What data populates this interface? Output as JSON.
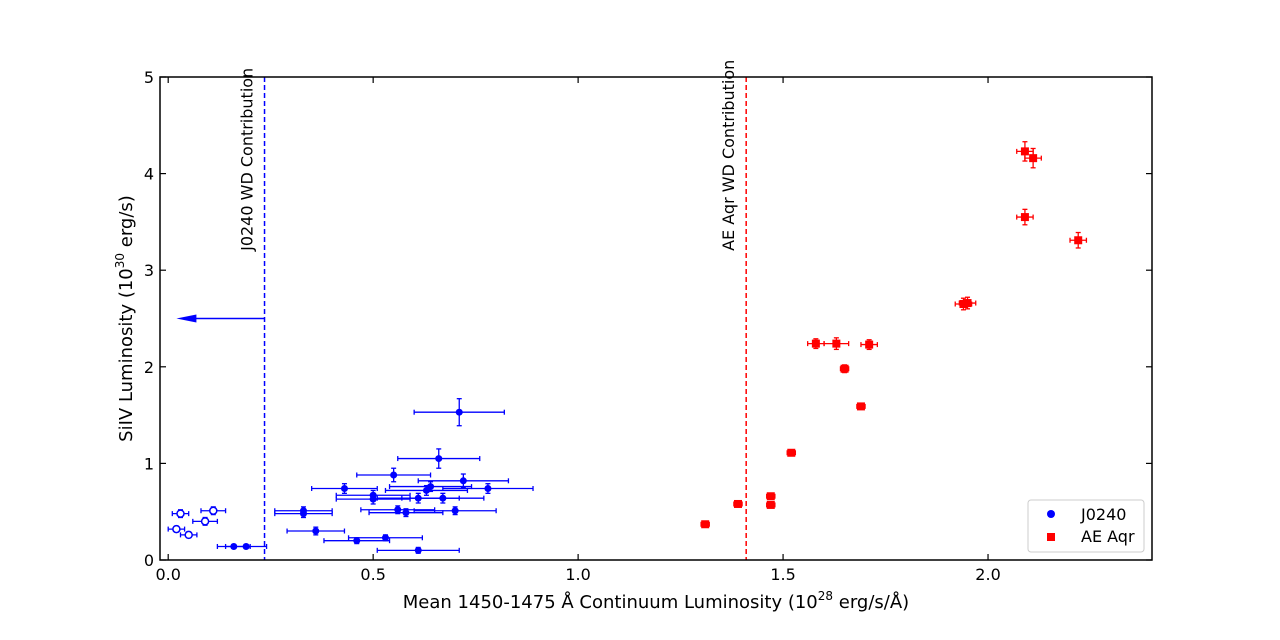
{
  "chart_data": {
    "type": "scatter",
    "title": "",
    "xlabel": "Mean 1450-1475 Å Continuum Luminosity (10",
    "xlabel_exp": "28",
    "xlabel_unit": " erg/s/Å)",
    "ylabel": "SiIV Luminosity (10",
    "ylabel_exp": "30",
    "ylabel_unit": " erg/s)",
    "xlim": [
      -0.02,
      2.4
    ],
    "ylim": [
      0,
      5
    ],
    "xticks": [
      0.0,
      0.5,
      1.0,
      1.5,
      2.0
    ],
    "xtick_labels": [
      "0.0",
      "0.5",
      "1.0",
      "1.5",
      "2.0"
    ],
    "yticks": [
      0,
      1,
      2,
      3,
      4,
      5
    ],
    "ytick_labels": [
      "0",
      "1",
      "2",
      "3",
      "4",
      "5"
    ],
    "vlines": [
      {
        "x": 0.235,
        "color": "#0000ff",
        "label": "J0240 WD Contribution",
        "label_y": 3.2
      },
      {
        "x": 1.41,
        "color": "#ff0000",
        "label": "AE Aqr WD Contribution",
        "label_y": 3.2
      }
    ],
    "arrow": {
      "x_from": 0.235,
      "x_to": 0.02,
      "y": 2.5,
      "color": "#0000ff"
    },
    "legend": {
      "position": "lower-right",
      "entries": [
        {
          "label": "J0240",
          "marker": "circle",
          "color": "#0000ff"
        },
        {
          "label": "AE Aqr",
          "marker": "square",
          "color": "#ff0000"
        }
      ]
    },
    "series": [
      {
        "name": "J0240",
        "marker": "circle",
        "color": "#0000ff",
        "points": [
          {
            "x": 0.71,
            "y": 1.53,
            "xerr": 0.11,
            "yerr": 0.14,
            "filled": true
          },
          {
            "x": 0.66,
            "y": 1.05,
            "xerr": 0.1,
            "yerr": 0.1,
            "filled": true
          },
          {
            "x": 0.55,
            "y": 0.88,
            "xerr": 0.09,
            "yerr": 0.07,
            "filled": true
          },
          {
            "x": 0.72,
            "y": 0.82,
            "xerr": 0.11,
            "yerr": 0.07,
            "filled": true
          },
          {
            "x": 0.78,
            "y": 0.74,
            "xerr": 0.11,
            "yerr": 0.05,
            "filled": true
          },
          {
            "x": 0.64,
            "y": 0.76,
            "xerr": 0.1,
            "yerr": 0.05,
            "filled": true
          },
          {
            "x": 0.43,
            "y": 0.74,
            "xerr": 0.08,
            "yerr": 0.05,
            "filled": true
          },
          {
            "x": 0.5,
            "y": 0.67,
            "xerr": 0.09,
            "yerr": 0.05,
            "filled": true
          },
          {
            "x": 0.5,
            "y": 0.63,
            "xerr": 0.09,
            "yerr": 0.05,
            "filled": true
          },
          {
            "x": 0.61,
            "y": 0.64,
            "xerr": 0.1,
            "yerr": 0.05,
            "filled": true
          },
          {
            "x": 0.67,
            "y": 0.64,
            "xerr": 0.1,
            "yerr": 0.05,
            "filled": true
          },
          {
            "x": 0.63,
            "y": 0.72,
            "xerr": 0.1,
            "yerr": 0.05,
            "filled": true
          },
          {
            "x": 0.56,
            "y": 0.52,
            "xerr": 0.09,
            "yerr": 0.04,
            "filled": true
          },
          {
            "x": 0.58,
            "y": 0.49,
            "xerr": 0.09,
            "yerr": 0.04,
            "filled": true
          },
          {
            "x": 0.7,
            "y": 0.51,
            "xerr": 0.1,
            "yerr": 0.04,
            "filled": true
          },
          {
            "x": 0.33,
            "y": 0.51,
            "xerr": 0.07,
            "yerr": 0.04,
            "filled": true
          },
          {
            "x": 0.33,
            "y": 0.48,
            "xerr": 0.07,
            "yerr": 0.04,
            "filled": true
          },
          {
            "x": 0.36,
            "y": 0.3,
            "xerr": 0.07,
            "yerr": 0.04,
            "filled": true
          },
          {
            "x": 0.46,
            "y": 0.2,
            "xerr": 0.08,
            "yerr": 0.03,
            "filled": true
          },
          {
            "x": 0.53,
            "y": 0.23,
            "xerr": 0.09,
            "yerr": 0.03,
            "filled": true
          },
          {
            "x": 0.61,
            "y": 0.1,
            "xerr": 0.1,
            "yerr": 0.03,
            "filled": true
          },
          {
            "x": 0.16,
            "y": 0.14,
            "xerr": 0.04,
            "yerr": 0.02,
            "filled": true
          },
          {
            "x": 0.19,
            "y": 0.14,
            "xerr": 0.05,
            "yerr": 0.02,
            "filled": true
          },
          {
            "x": 0.03,
            "y": 0.48,
            "xerr": 0.02,
            "yerr": 0.04,
            "filled": false
          },
          {
            "x": 0.11,
            "y": 0.51,
            "xerr": 0.03,
            "yerr": 0.04,
            "filled": false
          },
          {
            "x": 0.09,
            "y": 0.4,
            "xerr": 0.03,
            "yerr": 0.04,
            "filled": false
          },
          {
            "x": 0.02,
            "y": 0.32,
            "xerr": 0.02,
            "yerr": 0.03,
            "filled": false
          },
          {
            "x": 0.05,
            "y": 0.26,
            "xerr": 0.02,
            "yerr": 0.03,
            "filled": false
          }
        ]
      },
      {
        "name": "AE Aqr",
        "marker": "square",
        "color": "#ff0000",
        "points": [
          {
            "x": 2.09,
            "y": 4.23,
            "xerr": 0.02,
            "yerr": 0.1
          },
          {
            "x": 2.11,
            "y": 4.16,
            "xerr": 0.02,
            "yerr": 0.1
          },
          {
            "x": 2.09,
            "y": 3.55,
            "xerr": 0.02,
            "yerr": 0.08
          },
          {
            "x": 2.22,
            "y": 3.31,
            "xerr": 0.02,
            "yerr": 0.08
          },
          {
            "x": 1.94,
            "y": 2.65,
            "xerr": 0.02,
            "yerr": 0.06
          },
          {
            "x": 1.95,
            "y": 2.66,
            "xerr": 0.02,
            "yerr": 0.06
          },
          {
            "x": 1.58,
            "y": 2.24,
            "xerr": 0.02,
            "yerr": 0.05
          },
          {
            "x": 1.63,
            "y": 2.24,
            "xerr": 0.03,
            "yerr": 0.06
          },
          {
            "x": 1.71,
            "y": 2.23,
            "xerr": 0.02,
            "yerr": 0.05
          },
          {
            "x": 1.65,
            "y": 1.98,
            "xerr": 0.01,
            "yerr": 0.04
          },
          {
            "x": 1.69,
            "y": 1.59,
            "xerr": 0.01,
            "yerr": 0.03
          },
          {
            "x": 1.52,
            "y": 1.11,
            "xerr": 0.01,
            "yerr": 0.03
          },
          {
            "x": 1.47,
            "y": 0.66,
            "xerr": 0.01,
            "yerr": 0.03
          },
          {
            "x": 1.47,
            "y": 0.57,
            "xerr": 0.01,
            "yerr": 0.02
          },
          {
            "x": 1.39,
            "y": 0.58,
            "xerr": 0.01,
            "yerr": 0.02
          },
          {
            "x": 1.31,
            "y": 0.37,
            "xerr": 0.01,
            "yerr": 0.02
          }
        ]
      }
    ]
  }
}
